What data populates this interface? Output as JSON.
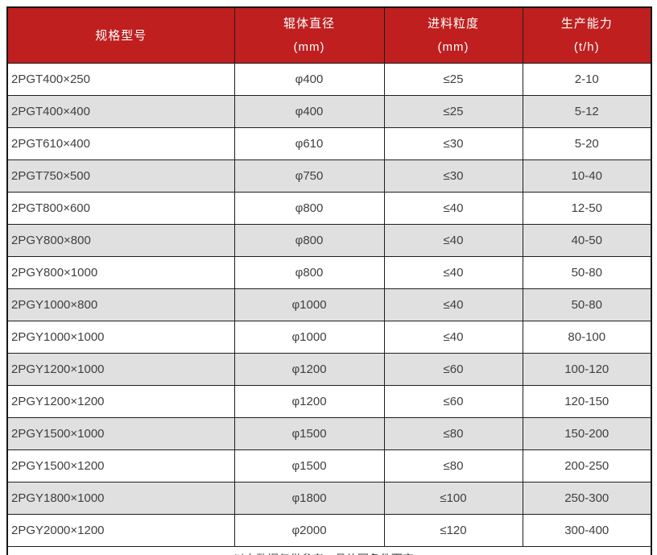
{
  "colors": {
    "header_bg": "#BF1F1F",
    "header_text": "#FFFFFF",
    "row_bg": "#FFFFFF",
    "row_alt_bg": "#E0E0E0",
    "border": "#1E1E1E",
    "body_text": "#404040"
  },
  "table": {
    "columns": [
      {
        "label": "规格型号",
        "unit": ""
      },
      {
        "label": "辊体直径",
        "unit": "(mm)"
      },
      {
        "label": "进料粒度",
        "unit": "(mm)"
      },
      {
        "label": "生产能力",
        "unit": "(t/h)"
      }
    ],
    "rows": [
      [
        "2PGT400×250",
        "φ400",
        "≤25",
        "2-10"
      ],
      [
        "2PGT400×400",
        "φ400",
        "≤25",
        "5-12"
      ],
      [
        "2PGT610×400",
        "φ610",
        "≤30",
        "5-20"
      ],
      [
        "2PGT750×500",
        "φ750",
        "≤30",
        "10-40"
      ],
      [
        "2PGT800×600",
        "φ800",
        "≤40",
        "12-50"
      ],
      [
        "2PGY800×800",
        "φ800",
        "≤40",
        "40-50"
      ],
      [
        "2PGY800×1000",
        "φ800",
        "≤40",
        "50-80"
      ],
      [
        "2PGY1000×800",
        "φ1000",
        "≤40",
        "50-80"
      ],
      [
        "2PGY1000×1000",
        "φ1000",
        "≤40",
        "80-100"
      ],
      [
        "2PGY1200×1000",
        "φ1200",
        "≤60",
        "100-120"
      ],
      [
        "2PGY1200×1200",
        "φ1200",
        "≤60",
        "120-150"
      ],
      [
        "2PGY1500×1000",
        "φ1500",
        "≤80",
        "150-200"
      ],
      [
        "2PGY1500×1200",
        "φ1500",
        "≤80",
        "200-250"
      ],
      [
        "2PGY1800×1000",
        "φ1800",
        "≤100",
        "250-300"
      ],
      [
        "2PGY2000×1200",
        "φ2000",
        "≤120",
        "300-400"
      ]
    ],
    "footnote": "以上数据仅供参考，具体因条件而定。"
  }
}
